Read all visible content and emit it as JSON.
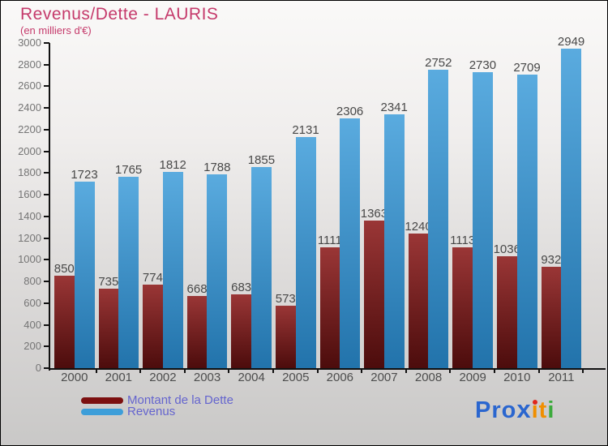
{
  "header": {
    "title": "Revenus/Dette - LAURIS",
    "subtitle": "(en milliers d'€)"
  },
  "chart_data": {
    "type": "bar",
    "title": "Revenus/Dette - LAURIS",
    "subtitle": "(en milliers d'€)",
    "categories": [
      "2000",
      "2001",
      "2002",
      "2003",
      "2004",
      "2005",
      "2006",
      "2007",
      "2008",
      "2009",
      "2010",
      "2011"
    ],
    "series": [
      {
        "name": "Montant de la Dette",
        "values": [
          850,
          735,
          774,
          668,
          683,
          573,
          1111,
          1363,
          1240,
          1113,
          1036,
          932
        ],
        "bar_color_top": "#9a3636",
        "bar_color_bottom": "#4c0c0c",
        "legend_color": "#7c1010"
      },
      {
        "name": "Revenus",
        "values": [
          1723,
          1765,
          1812,
          1788,
          1855,
          2131,
          2306,
          2341,
          2752,
          2730,
          2709,
          2949
        ],
        "bar_color_top": "#5aabdf",
        "bar_color_bottom": "#2273ab",
        "legend_color": "#3d9ed9"
      }
    ],
    "ylim": [
      0,
      3000
    ],
    "ytick_step": 200,
    "xlabel": "",
    "ylabel": "",
    "grid": false,
    "value_labels": true,
    "legend_position": "bottom-left"
  },
  "legend": {
    "items": [
      {
        "label": "Montant de la Dette",
        "color": "#7c1010"
      },
      {
        "label": "Revenus",
        "color": "#3d9ed9"
      }
    ]
  },
  "logo": {
    "text": "Proxiti",
    "letters": [
      {
        "char": "P",
        "color": "#2a66cf"
      },
      {
        "char": "r",
        "color": "#2a66cf"
      },
      {
        "char": "o",
        "color": "#2a66cf"
      },
      {
        "char": "x",
        "color": "#2a66cf",
        "bold": true
      },
      {
        "char": "i",
        "color": "#f08f00",
        "dot_color": "#e0261c"
      },
      {
        "char": "t",
        "color": "#f08f00"
      },
      {
        "char": "i",
        "color": "#3caa3c"
      }
    ]
  },
  "colors": {
    "title": "#c53a6b",
    "legend_text": "#6464ce",
    "axis": "#111111",
    "tick_label": "#757575",
    "category_label": "#4d4d4d",
    "value_label": "#484848",
    "background_top": "#f8f7f6",
    "background_bottom": "#c8c7c6",
    "border": "#000000"
  }
}
